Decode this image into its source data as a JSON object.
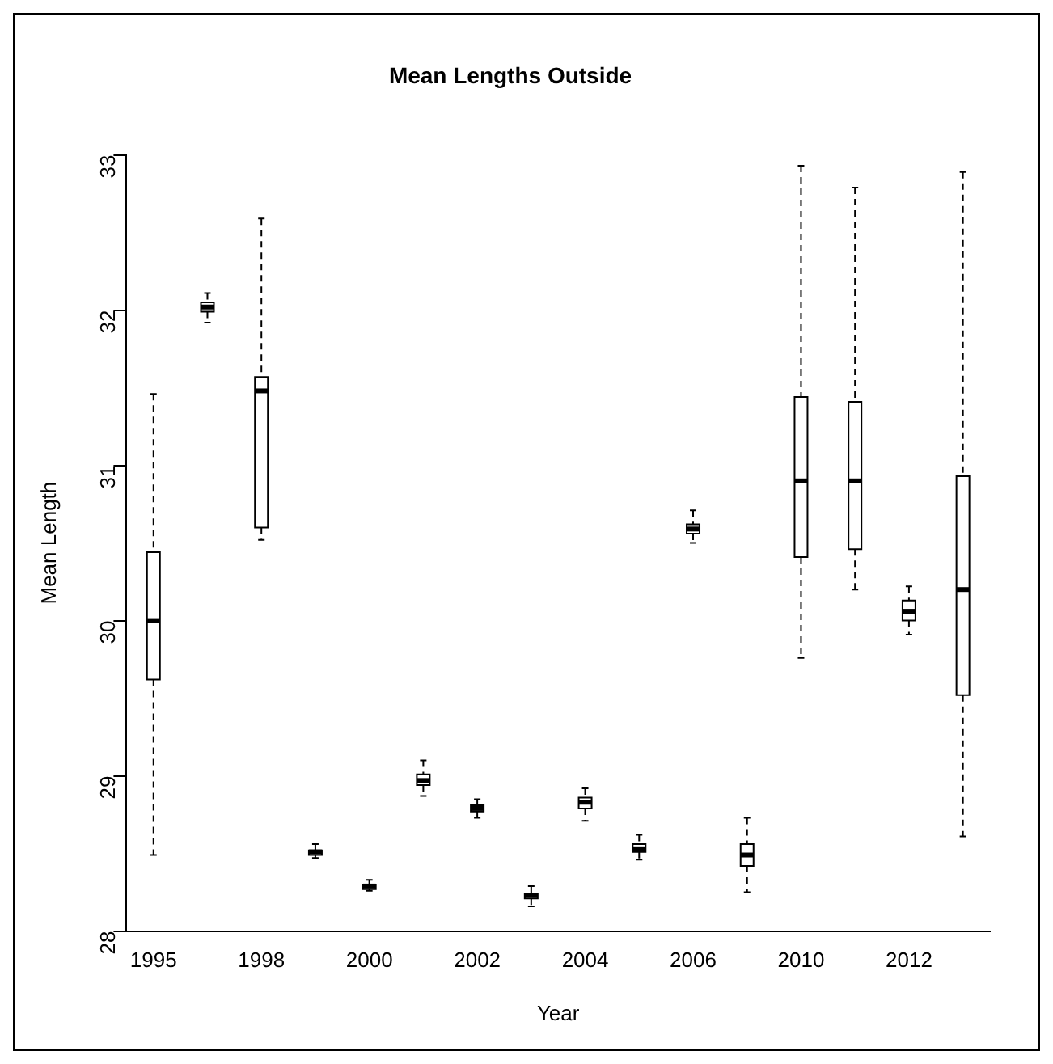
{
  "chart_data": {
    "type": "box",
    "title": "Mean Lengths Outside",
    "xlabel": "Year",
    "ylabel": "Mean Length",
    "categories": [
      "1995",
      null,
      "1998",
      null,
      "2000",
      null,
      "2002",
      null,
      "2004",
      null,
      "2006",
      null,
      "2010",
      null,
      "2012",
      null
    ],
    "ylim": [
      28,
      33
    ],
    "yticks": [
      28,
      29,
      30,
      31,
      32,
      33
    ],
    "grid": false,
    "legend": false,
    "line_style": "dashed",
    "boxes": [
      {
        "low": 28.49,
        "q1": 29.62,
        "median": 30.0,
        "q3": 30.44,
        "high": 31.46
      },
      {
        "low": 31.92,
        "q1": 31.99,
        "median": 32.02,
        "q3": 32.05,
        "high": 32.11
      },
      {
        "low": 30.52,
        "q1": 30.6,
        "median": 31.48,
        "q3": 31.57,
        "high": 32.59
      },
      {
        "low": 28.47,
        "q1": 28.49,
        "median": 28.51,
        "q3": 28.52,
        "high": 28.56
      },
      {
        "low": 28.26,
        "q1": 28.27,
        "median": 28.29,
        "q3": 28.3,
        "high": 28.33
      },
      {
        "low": 28.87,
        "q1": 28.94,
        "median": 28.97,
        "q3": 29.01,
        "high": 29.1
      },
      {
        "low": 28.73,
        "q1": 28.77,
        "median": 28.79,
        "q3": 28.81,
        "high": 28.85
      },
      {
        "low": 28.16,
        "q1": 28.21,
        "median": 28.23,
        "q3": 28.24,
        "high": 28.29
      },
      {
        "low": 28.71,
        "q1": 28.79,
        "median": 28.83,
        "q3": 28.86,
        "high": 28.92
      },
      {
        "low": 28.46,
        "q1": 28.51,
        "median": 28.53,
        "q3": 28.56,
        "high": 28.62
      },
      {
        "low": 30.5,
        "q1": 30.56,
        "median": 30.59,
        "q3": 30.62,
        "high": 30.71
      },
      {
        "low": 28.25,
        "q1": 28.42,
        "median": 28.49,
        "q3": 28.56,
        "high": 28.73
      },
      {
        "low": 29.76,
        "q1": 30.41,
        "median": 30.9,
        "q3": 31.44,
        "high": 32.93
      },
      {
        "low": 30.2,
        "q1": 30.46,
        "median": 30.9,
        "q3": 31.41,
        "high": 32.79
      },
      {
        "low": 29.91,
        "q1": 30.0,
        "median": 30.06,
        "q3": 30.13,
        "high": 30.22
      },
      {
        "low": 28.61,
        "q1": 29.52,
        "median": 30.2,
        "q3": 30.93,
        "high": 32.89
      }
    ]
  }
}
